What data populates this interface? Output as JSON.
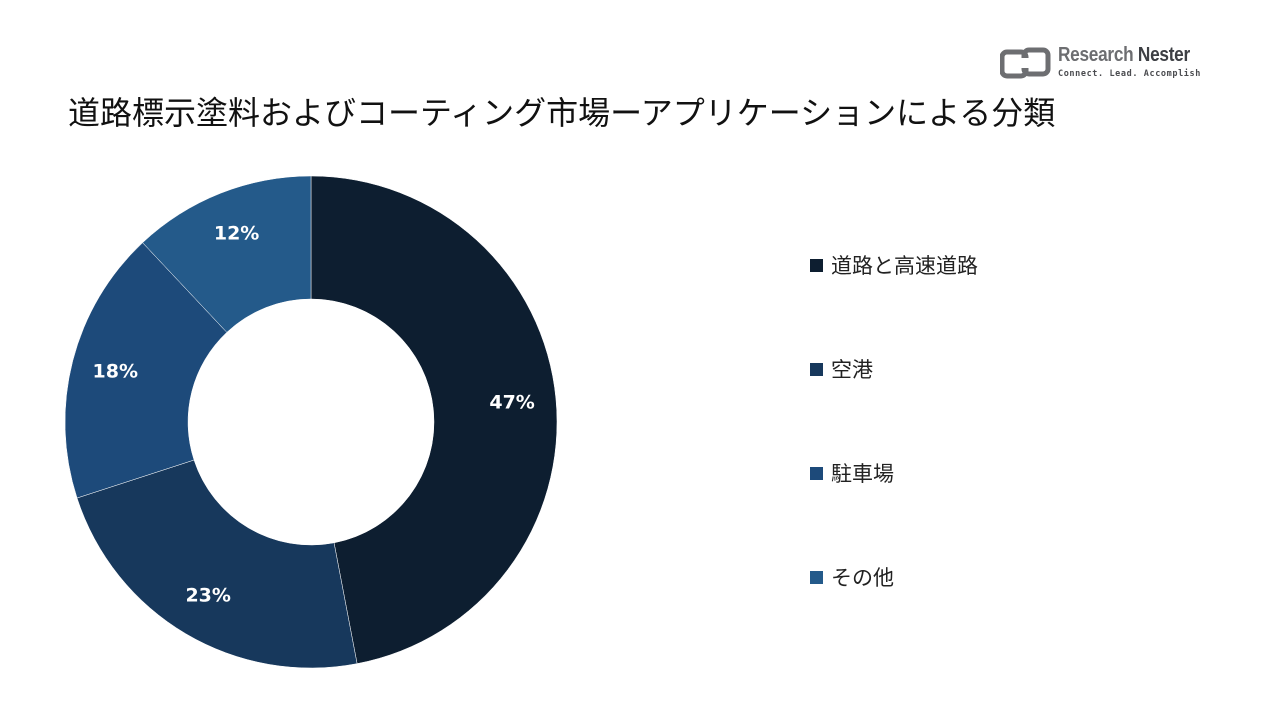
{
  "header": {
    "title": "道路標示塗料およびコーティング市場ーアプリケーションによる分類"
  },
  "brand": {
    "name_part1": "Research",
    "name_part2": "Nester",
    "tagline": "Connect. Lead. Accomplish",
    "icon": "research-nester-logo-icon",
    "color": "#6d6e71"
  },
  "chart_data": {
    "type": "pie",
    "style": "donut",
    "title": "道路標示塗料およびコーティング市場ーアプリケーションによる分類",
    "categories": [
      "道路と高速道路",
      "空港",
      "駐車場",
      "その他"
    ],
    "values": [
      47,
      23,
      18,
      12
    ],
    "labels": [
      "47%",
      "23%",
      "18%",
      "12%"
    ],
    "colors": [
      "#0d1e30",
      "#17385c",
      "#1d4a7a",
      "#245a8a"
    ],
    "legend_position": "right",
    "start_angle": "12 o'clock, clockwise"
  }
}
